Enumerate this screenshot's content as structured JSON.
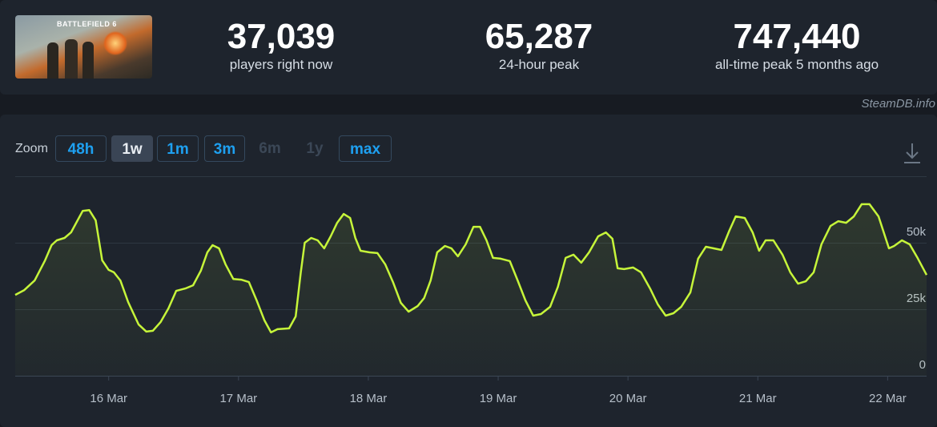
{
  "header": {
    "game_title": "BATTLEFIELD 6",
    "stats": [
      {
        "value": "37,039",
        "label": "players right now"
      },
      {
        "value": "65,287",
        "label": "24-hour peak"
      },
      {
        "value": "747,440",
        "label": "all-time peak 5 months ago"
      }
    ],
    "watermark": "SteamDB.info"
  },
  "zoom": {
    "label": "Zoom",
    "buttons": [
      {
        "text": "48h",
        "state": "enabled"
      },
      {
        "text": "1w",
        "state": "active"
      },
      {
        "text": "1m",
        "state": "enabled"
      },
      {
        "text": "3m",
        "state": "enabled"
      },
      {
        "text": "6m",
        "state": "disabled"
      },
      {
        "text": "1y",
        "state": "disabled"
      },
      {
        "text": "max",
        "state": "enabled"
      }
    ]
  },
  "chart_data": {
    "type": "line",
    "color": "#c6f53a",
    "x": [
      15.28,
      15.35,
      15.43,
      15.51,
      15.56,
      15.6,
      15.66,
      15.71,
      15.75,
      15.8,
      15.85,
      15.9,
      15.95,
      16.0,
      16.04,
      16.09,
      16.15,
      16.23,
      16.29,
      16.34,
      16.4,
      16.46,
      16.52,
      16.59,
      16.65,
      16.71,
      16.76,
      16.8,
      16.85,
      16.9,
      16.96,
      17.02,
      17.08,
      17.14,
      17.2,
      17.25,
      17.3,
      17.39,
      17.44,
      17.48,
      17.51,
      17.56,
      17.61,
      17.66,
      17.71,
      17.76,
      17.81,
      17.86,
      17.9,
      17.94,
      18.01,
      18.07,
      18.13,
      18.19,
      18.25,
      18.31,
      18.38,
      18.43,
      18.48,
      18.53,
      18.59,
      18.64,
      18.69,
      18.75,
      18.81,
      18.86,
      18.91,
      18.96,
      19.02,
      19.09,
      19.15,
      19.21,
      19.27,
      19.33,
      19.4,
      19.46,
      19.52,
      19.58,
      19.64,
      19.7,
      19.77,
      19.83,
      19.88,
      19.92,
      19.97,
      20.04,
      20.1,
      20.17,
      20.23,
      20.29,
      20.35,
      20.41,
      20.48,
      20.54,
      20.6,
      20.66,
      20.72,
      20.78,
      20.83,
      20.9,
      20.96,
      21.01,
      21.06,
      21.12,
      21.19,
      21.25,
      21.31,
      21.37,
      21.43,
      21.49,
      21.56,
      21.62,
      21.68,
      21.74,
      21.8,
      21.86,
      21.93,
      22.01,
      22.05,
      22.11,
      22.17,
      22.23,
      22.3
    ],
    "values": [
      30400,
      32200,
      35800,
      43400,
      49100,
      50900,
      51800,
      53900,
      57500,
      62000,
      62300,
      58400,
      43400,
      39800,
      38900,
      35800,
      27700,
      19300,
      16600,
      16900,
      20200,
      25300,
      31900,
      32800,
      34000,
      39500,
      46400,
      49100,
      47900,
      41900,
      36400,
      36100,
      35200,
      28300,
      20800,
      16300,
      17500,
      17800,
      22300,
      38900,
      50000,
      51800,
      50900,
      47900,
      52400,
      57500,
      60800,
      59300,
      51800,
      47000,
      46400,
      46100,
      41900,
      35200,
      27400,
      24100,
      26200,
      29200,
      35800,
      46400,
      48800,
      47900,
      44900,
      49400,
      56000,
      56000,
      50900,
      44300,
      44000,
      43100,
      35800,
      28300,
      22600,
      23200,
      25900,
      33400,
      44300,
      45500,
      42500,
      46400,
      52400,
      53900,
      51500,
      40400,
      40100,
      40700,
      38900,
      32800,
      26800,
      22600,
      23500,
      25900,
      31300,
      44000,
      48500,
      47900,
      47300,
      54500,
      59900,
      59300,
      53900,
      47000,
      50900,
      50900,
      45500,
      38900,
      34600,
      35500,
      38900,
      49400,
      56300,
      58100,
      57500,
      59900,
      64500,
      64500,
      59900,
      47900,
      48800,
      50900,
      49400,
      44300,
      37900
    ],
    "xlim": [
      15.28,
      22.3
    ],
    "xticks": [
      {
        "value": 16,
        "label": "16 Mar"
      },
      {
        "value": 17,
        "label": "17 Mar"
      },
      {
        "value": 18,
        "label": "18 Mar"
      },
      {
        "value": 19,
        "label": "19 Mar"
      },
      {
        "value": 20,
        "label": "20 Mar"
      },
      {
        "value": 21,
        "label": "21 Mar"
      },
      {
        "value": 22,
        "label": "22 Mar"
      }
    ],
    "ylim": [
      0,
      75000
    ],
    "yticks": [
      0,
      {
        "value": 25000,
        "label": "25k"
      },
      {
        "value": 50000,
        "label": "50k"
      }
    ],
    "grid": true
  }
}
